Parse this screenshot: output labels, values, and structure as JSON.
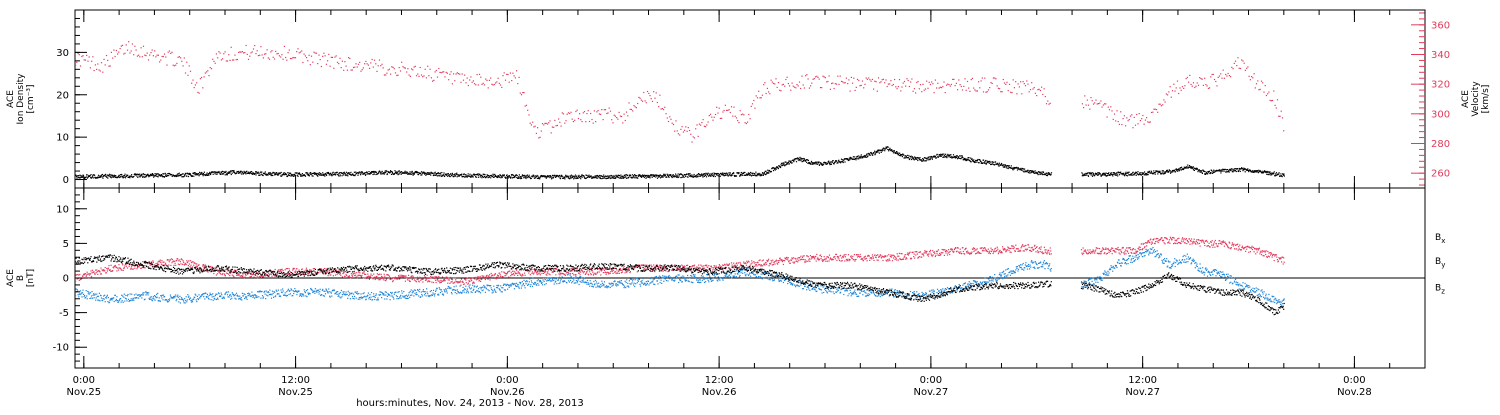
{
  "figure": {
    "xlabel": "hours:minutes, Nov. 24, 2013 - Nov. 28, 2013",
    "time_ticks": [
      {
        "t": 0.5,
        "time": "0:00",
        "date": "Nov.25"
      },
      {
        "t": 12.5,
        "time": "12:00",
        "date": "Nov.25"
      },
      {
        "t": 24.5,
        "time": "0:00",
        "date": "Nov.26"
      },
      {
        "t": 36.5,
        "time": "12:00",
        "date": "Nov.26"
      },
      {
        "t": 48.5,
        "time": "0:00",
        "date": "Nov.27"
      },
      {
        "t": 60.5,
        "time": "12:00",
        "date": "Nov.27"
      },
      {
        "t": 72.5,
        "time": "0:00",
        "date": "Nov.28"
      }
    ]
  },
  "colors": {
    "density": "#000000",
    "velocity": "#e23b5c",
    "bx": "#000000",
    "by": "#1f86d8",
    "bz": "#e23b5c"
  },
  "chart_data": [
    {
      "type": "scatter",
      "title": "",
      "ylabel_left": [
        "ACE",
        "Ion Density",
        "[cm⁻³]"
      ],
      "ylabel_right": [
        "ACE",
        "Velocity",
        "[km/s]"
      ],
      "ylim_left": [
        -2,
        40
      ],
      "ylim_right": [
        250,
        370
      ],
      "xlim": [
        0,
        76.5
      ],
      "yticks_left": [
        "0",
        "10",
        "20",
        "30"
      ],
      "yticks_right": [
        "260",
        "280",
        "300",
        "320",
        "340",
        "360"
      ],
      "gaps": [
        [
          55.3,
          57.0
        ],
        [
          68.7,
          76.5
        ]
      ],
      "series": [
        {
          "name": "Ion Density",
          "axis": "left",
          "x": [
            0,
            3,
            6,
            9,
            12,
            15,
            18,
            21,
            24,
            27,
            30,
            33,
            36,
            39,
            40,
            41,
            42,
            43,
            44,
            45,
            46,
            47,
            48,
            49,
            50,
            51,
            52,
            53,
            54,
            55,
            57,
            60,
            62,
            63,
            64,
            66,
            68.5
          ],
          "values": [
            0.8,
            1.0,
            1.2,
            1.8,
            1.3,
            1.4,
            1.8,
            1.3,
            0.9,
            0.7,
            0.8,
            0.9,
            1.2,
            1.5,
            3.5,
            5.0,
            3.8,
            4.2,
            5.0,
            6.0,
            7.5,
            5.5,
            4.8,
            5.8,
            5.5,
            4.5,
            4.0,
            3.0,
            2.0,
            1.5,
            1.3,
            1.5,
            2.0,
            3.2,
            1.8,
            2.5,
            1.2
          ]
        },
        {
          "name": "Velocity",
          "axis": "right",
          "x": [
            0,
            1.5,
            3,
            4.5,
            6,
            7,
            8,
            10,
            12,
            14,
            16,
            18,
            20,
            22,
            24,
            25,
            26,
            27,
            28,
            29,
            30,
            31,
            32,
            33,
            34,
            35,
            36,
            37,
            38,
            39,
            40,
            42,
            44,
            46,
            48,
            50,
            52,
            54,
            55,
            57,
            58,
            59,
            60,
            61,
            62,
            63,
            64,
            65,
            66,
            67,
            68,
            68.5
          ],
          "values": [
            338,
            333,
            346,
            340,
            336,
            318,
            340,
            342,
            341,
            337,
            333,
            331,
            328,
            322,
            322,
            326,
            288,
            292,
            300,
            298,
            300,
            298,
            312,
            310,
            292,
            285,
            300,
            302,
            296,
            318,
            320,
            323,
            320,
            320,
            319,
            320,
            320,
            318,
            312,
            310,
            305,
            298,
            295,
            300,
            315,
            322,
            320,
            325,
            335,
            320,
            310,
            292
          ]
        }
      ]
    },
    {
      "type": "scatter",
      "title": "",
      "ylabel_left": [
        "ACE",
        "B",
        "[nT]"
      ],
      "ylim": [
        -13,
        13
      ],
      "xlim": [
        0,
        76.5
      ],
      "yticks": [
        "-10",
        "-5",
        "0",
        "5",
        "10"
      ],
      "gaps": [
        [
          55.3,
          57.0
        ],
        [
          68.7,
          76.5
        ]
      ],
      "legend": [
        "Bx",
        "By",
        "Bz"
      ],
      "series": [
        {
          "name": "Bx",
          "axis": "left",
          "x": [
            0,
            2,
            4,
            6,
            8,
            10,
            12,
            14,
            16,
            18,
            20,
            22,
            24,
            26,
            28,
            30,
            32,
            34,
            36,
            38,
            40,
            42,
            44,
            46,
            48,
            50,
            52,
            54,
            55,
            57,
            58,
            59,
            60,
            61,
            62,
            63,
            64,
            65,
            66,
            67,
            68,
            68.5
          ],
          "values": [
            2.5,
            3.0,
            2.0,
            1.0,
            1.5,
            1.0,
            0.5,
            1.0,
            1.5,
            1.5,
            1.0,
            1.2,
            2.0,
            1.5,
            1.5,
            1.8,
            1.5,
            1.5,
            1.0,
            1.5,
            0.5,
            -1.0,
            -1.0,
            -2.0,
            -3.0,
            -1.5,
            -1.0,
            -1.0,
            -0.8,
            -1.0,
            -1.5,
            -2.5,
            -2.0,
            -1.0,
            0.5,
            -1.0,
            -1.5,
            -2.0,
            -2.0,
            -3.0,
            -5.0,
            -4.0
          ]
        },
        {
          "name": "By",
          "axis": "left",
          "x": [
            0,
            2,
            4,
            6,
            8,
            10,
            12,
            14,
            16,
            18,
            20,
            22,
            24,
            26,
            28,
            30,
            32,
            34,
            36,
            38,
            40,
            42,
            44,
            46,
            48,
            50,
            52,
            54,
            55,
            57,
            58,
            59,
            60,
            61,
            62,
            63,
            64,
            65,
            66,
            67,
            68,
            68.5
          ],
          "values": [
            -2.0,
            -3.0,
            -2.5,
            -3.0,
            -2.5,
            -2.5,
            -2.0,
            -2.0,
            -2.5,
            -2.5,
            -2.0,
            -1.5,
            -1.5,
            -0.5,
            0.0,
            -1.0,
            -0.5,
            0.0,
            0.0,
            1.0,
            0.0,
            -1.5,
            -2.0,
            -2.0,
            -2.5,
            -1.5,
            0.0,
            2.0,
            2.0,
            -1.0,
            0.0,
            2.0,
            3.0,
            4.0,
            2.0,
            3.0,
            1.0,
            0.5,
            -1.0,
            -2.0,
            -3.0,
            -3.5
          ]
        },
        {
          "name": "Bz",
          "axis": "left",
          "x": [
            0,
            2,
            4,
            6,
            8,
            10,
            12,
            14,
            16,
            18,
            20,
            22,
            24,
            26,
            28,
            30,
            32,
            34,
            36,
            38,
            40,
            42,
            44,
            46,
            48,
            50,
            52,
            54,
            55,
            57,
            58,
            59,
            60,
            61,
            62,
            63,
            64,
            65,
            66,
            67,
            68,
            68.5
          ],
          "values": [
            0.0,
            1.5,
            2.0,
            2.5,
            1.0,
            0.5,
            1.0,
            1.0,
            0.5,
            0.0,
            0.0,
            -0.5,
            0.5,
            1.0,
            1.0,
            1.0,
            1.5,
            1.5,
            1.5,
            2.0,
            2.5,
            3.0,
            3.0,
            3.0,
            3.5,
            4.0,
            4.0,
            4.5,
            4.0,
            4.0,
            4.0,
            4.0,
            4.0,
            5.5,
            5.5,
            5.5,
            5.0,
            5.0,
            4.5,
            4.0,
            3.0,
            2.5
          ]
        }
      ]
    }
  ]
}
